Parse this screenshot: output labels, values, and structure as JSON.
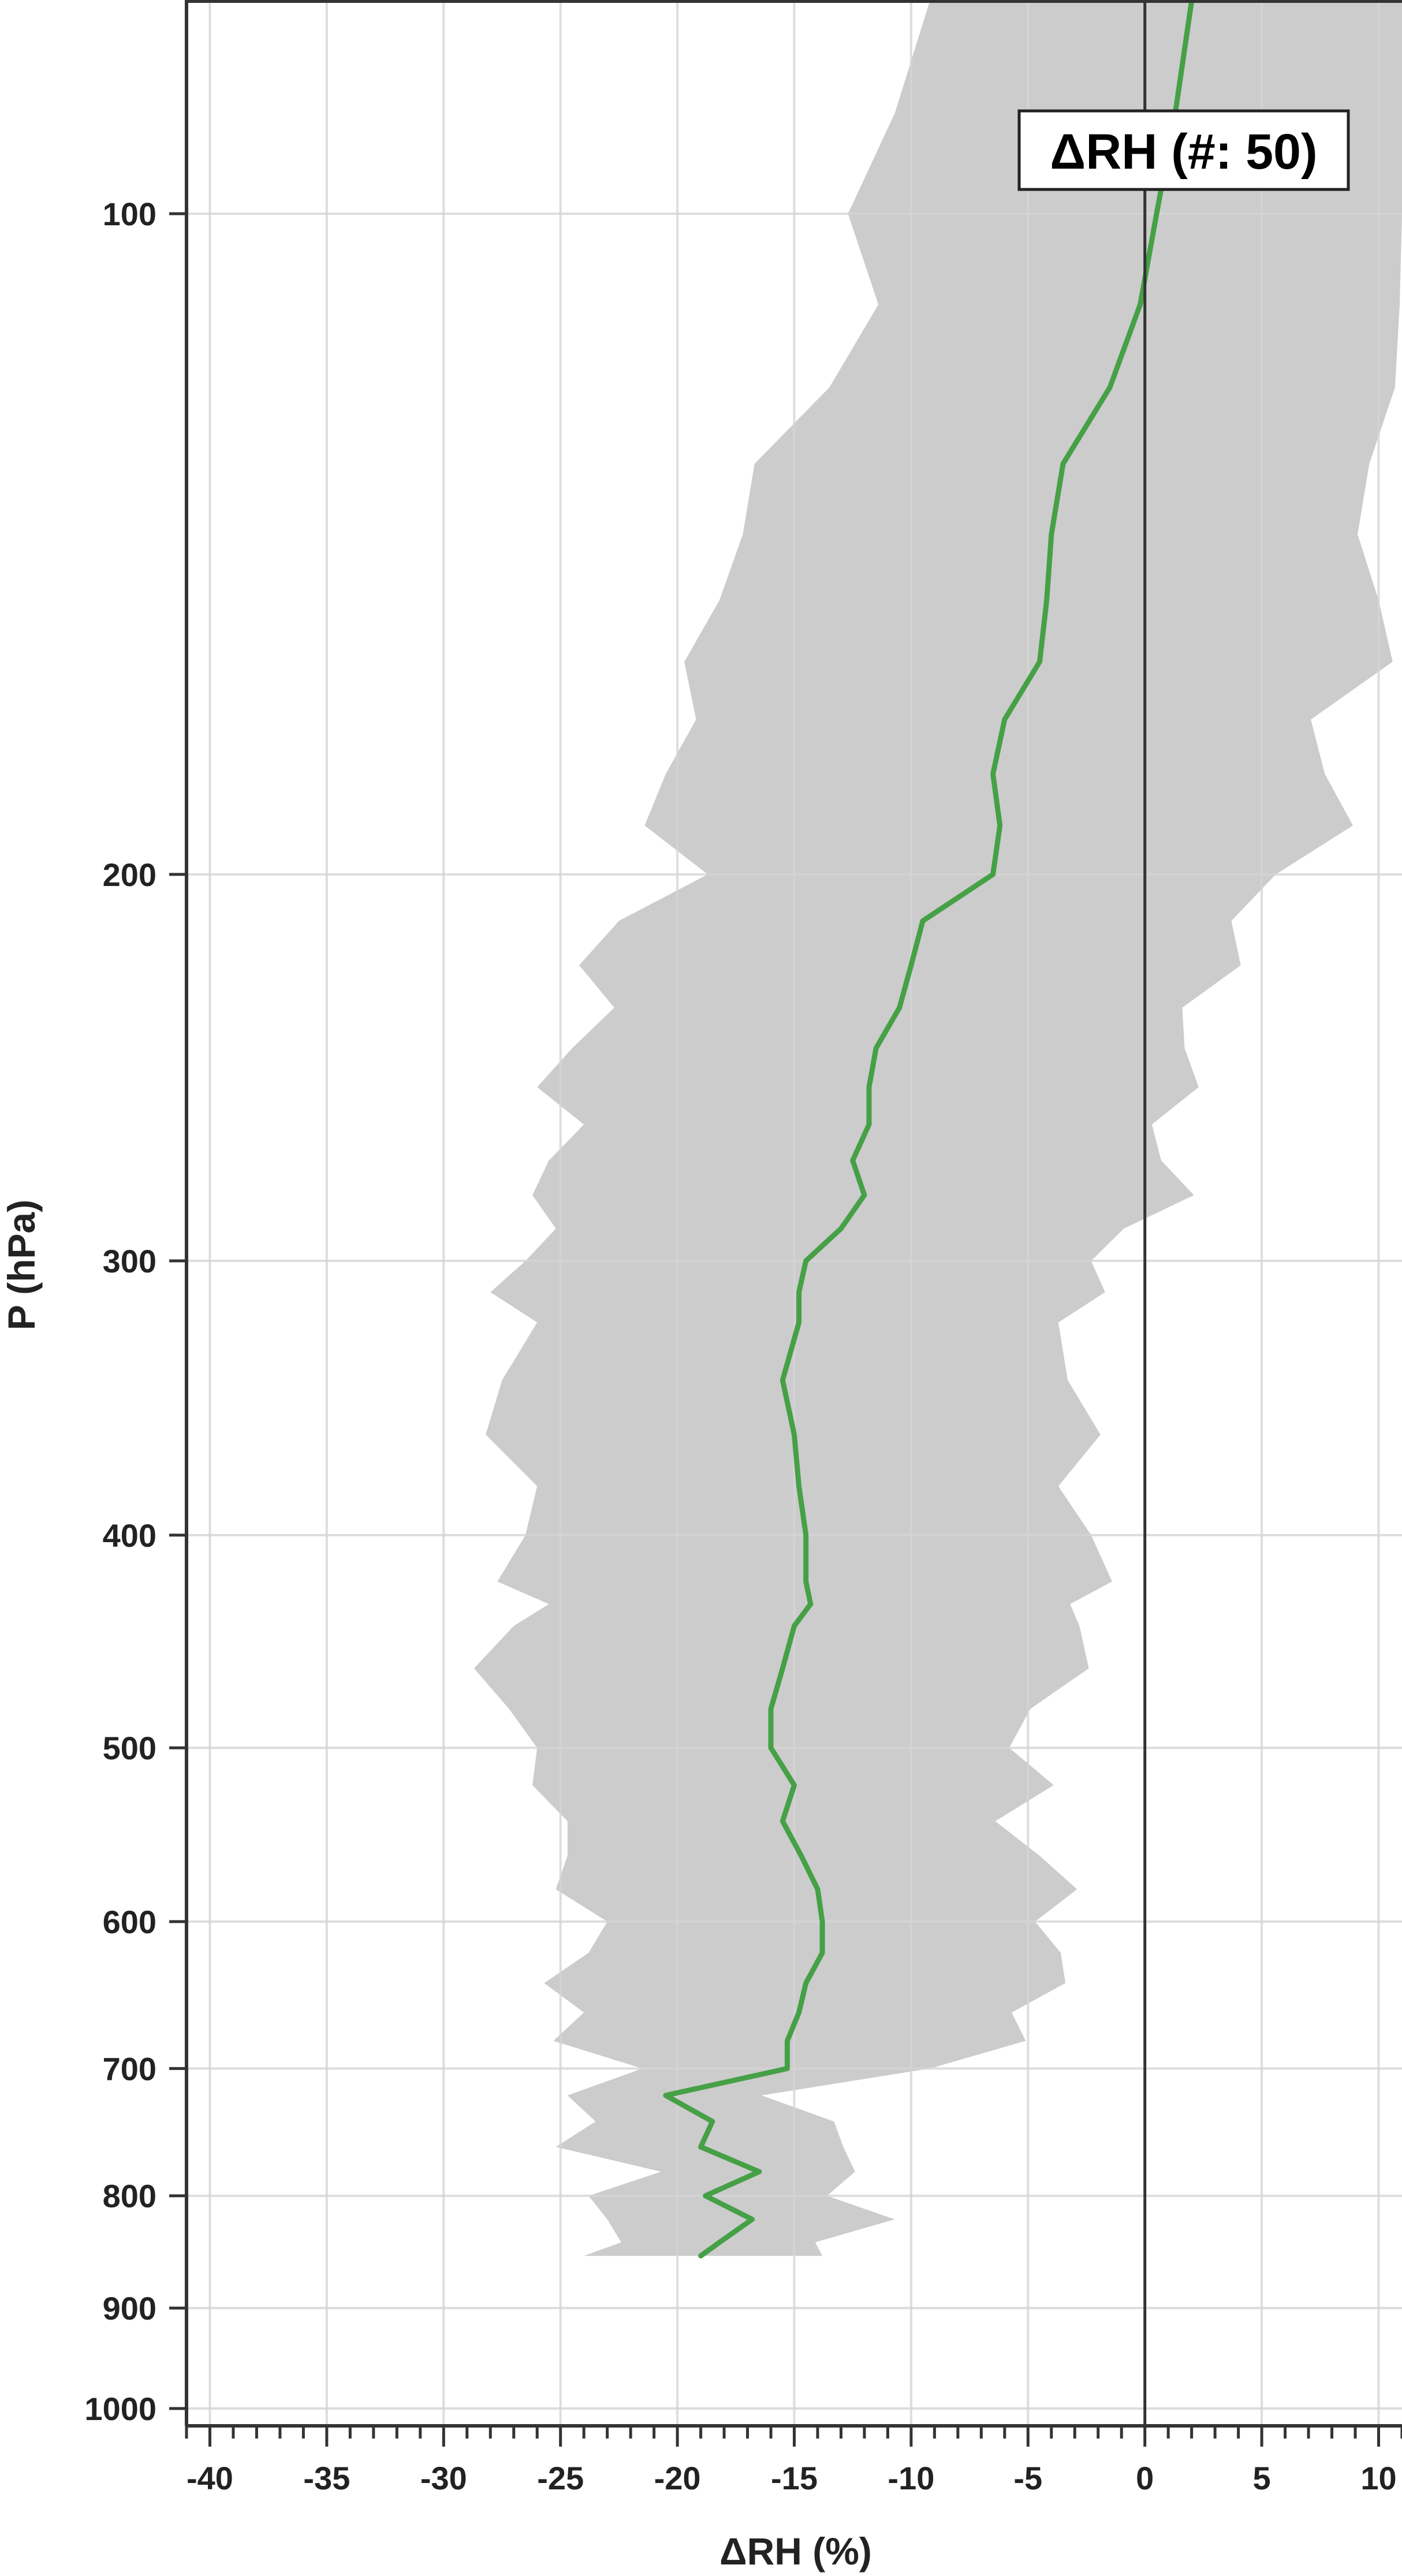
{
  "chart_data": {
    "type": "line",
    "xlabel": "ΔRH (%)",
    "ylabel": "P (hPa)",
    "xlim": [
      -41,
      11
    ],
    "ylim": [
      1000,
      72
    ],
    "y_scale": "log",
    "grid": true,
    "x_ticks": [
      -40,
      -35,
      -30,
      -25,
      -20,
      -15,
      -10,
      -5,
      0,
      5,
      10
    ],
    "x_tick_labels": [
      "-40",
      "-35",
      "-30",
      "-25",
      "-20",
      "-15",
      "-10",
      "-5",
      "0",
      "5",
      "10"
    ],
    "y_ticks": [
      100,
      200,
      300,
      400,
      500,
      600,
      700,
      800,
      900,
      1000
    ],
    "y_tick_labels": [
      "100",
      "200",
      "300",
      "400",
      "500",
      "600",
      "700",
      "800",
      "900",
      "1000"
    ],
    "legend": {
      "text": "ΔRH (#: 50)",
      "placement": "top-right"
    },
    "reference_line_x": 0,
    "colors": {
      "mean_line": "#46a046",
      "spread_band": "#cccccc",
      "grid": "#d4d4d4",
      "axis": "#333333"
    },
    "series": [
      {
        "kind": "mean",
        "p": [
          72,
          80,
          90,
          100,
          110,
          120,
          130,
          140,
          150,
          160,
          170,
          180,
          190,
          200,
          210,
          220,
          230,
          240,
          250,
          260,
          270,
          280,
          290,
          300,
          310,
          320,
          340,
          360,
          380,
          400,
          420,
          430,
          440,
          460,
          480,
          500,
          520,
          540,
          560,
          580,
          600,
          620,
          640,
          660,
          680,
          700,
          720,
          740,
          760,
          780,
          800,
          820,
          840,
          852
        ],
        "rh": [
          2.5,
          2.0,
          1.3,
          0.5,
          -0.2,
          -1.5,
          -3.5,
          -4.0,
          -4.2,
          -4.5,
          -6.0,
          -6.5,
          -6.2,
          -6.5,
          -9.5,
          -10.0,
          -10.5,
          -11.5,
          -11.8,
          -11.8,
          -12.5,
          -12.0,
          -13.0,
          -14.5,
          -14.8,
          -14.8,
          -15.5,
          -15.0,
          -14.8,
          -14.5,
          -14.5,
          -14.3,
          -15.0,
          -15.5,
          -16.0,
          -16.0,
          -15.0,
          -15.5,
          -14.7,
          -14.0,
          -13.8,
          -13.8,
          -14.5,
          -14.8,
          -15.3,
          -15.3,
          -20.5,
          -18.5,
          -19.0,
          -16.5,
          -18.8,
          -16.8,
          -18.2,
          -19.0
        ]
      }
    ]
  }
}
